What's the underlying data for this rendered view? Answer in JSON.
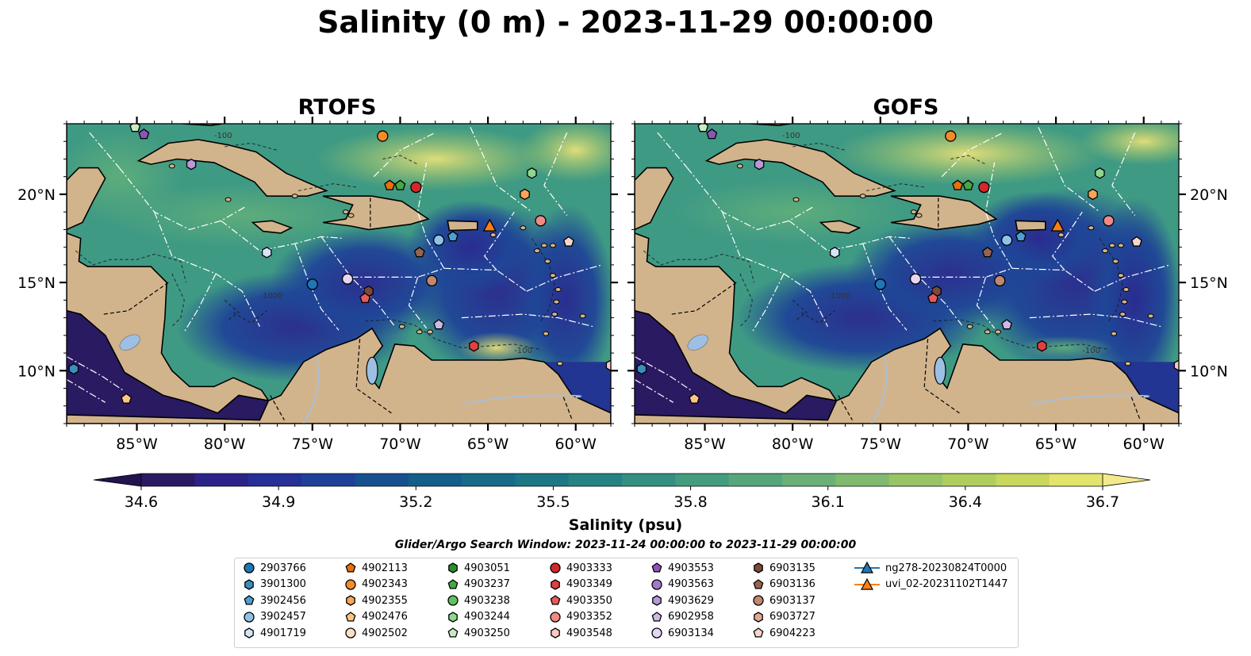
{
  "figure": {
    "title": "Salinity (0 m) - 2023-11-29 00:00:00",
    "panels": [
      {
        "title": "RTOFS"
      },
      {
        "title": "GOFS"
      }
    ],
    "colorbar": {
      "label": "Salinity (psu)",
      "ticks": [
        "34.6",
        "34.9",
        "35.2",
        "35.5",
        "35.8",
        "36.1",
        "36.4",
        "36.7"
      ],
      "colors": [
        "#2b1a62",
        "#2c2388",
        "#253196",
        "#1e4098",
        "#17508f",
        "#145e8a",
        "#176b87",
        "#1c7785",
        "#258384",
        "#348f83",
        "#449b80",
        "#56a67c",
        "#6ab077",
        "#81ba6f",
        "#98c466",
        "#b0cd5e",
        "#c9d75c",
        "#e2e46c"
      ]
    },
    "search_window": "Glider/Argo Search Window: 2023-11-24 00:00:00 to 2023-11-29 00:00:00",
    "lon_ticks": [
      "85°W",
      "80°W",
      "75°W",
      "70°W",
      "65°W",
      "60°W"
    ],
    "lat_ticks": [
      "20°N",
      "15°N",
      "10°N"
    ],
    "contour_labels": [
      "-100",
      "-1000",
      "-100"
    ]
  },
  "legend": [
    {
      "label": "2903766",
      "color": "#1f77b4",
      "marker": "circle"
    },
    {
      "label": "3901300",
      "color": "#3a8fbf",
      "marker": "hexagon"
    },
    {
      "label": "3902456",
      "color": "#4e9fd0",
      "marker": "pentagon"
    },
    {
      "label": "3902457",
      "color": "#8fc2e8",
      "marker": "circle"
    },
    {
      "label": "4901719",
      "color": "#d4e6f6",
      "marker": "hexagon"
    },
    {
      "label": "4902113",
      "color": "#e6700c",
      "marker": "pentagon"
    },
    {
      "label": "4902343",
      "color": "#f58b2a",
      "marker": "circle"
    },
    {
      "label": "4902355",
      "color": "#f9a45a",
      "marker": "hexagon"
    },
    {
      "label": "4902476",
      "color": "#fbc587",
      "marker": "pentagon"
    },
    {
      "label": "4902502",
      "color": "#fde0c2",
      "marker": "circle"
    },
    {
      "label": "4903051",
      "color": "#2e8b2e",
      "marker": "hexagon"
    },
    {
      "label": "4903237",
      "color": "#44a844",
      "marker": "pentagon"
    },
    {
      "label": "4903238",
      "color": "#5fc15f",
      "marker": "circle"
    },
    {
      "label": "4903244",
      "color": "#8fd68f",
      "marker": "hexagon"
    },
    {
      "label": "4903250",
      "color": "#c8ecc0",
      "marker": "pentagon"
    },
    {
      "label": "4903333",
      "color": "#d62728",
      "marker": "circle"
    },
    {
      "label": "4903349",
      "color": "#e04040",
      "marker": "hexagon"
    },
    {
      "label": "4903350",
      "color": "#e85a5a",
      "marker": "pentagon"
    },
    {
      "label": "4903352",
      "color": "#f08a84",
      "marker": "circle"
    },
    {
      "label": "4903548",
      "color": "#f9c9c4",
      "marker": "hexagon"
    },
    {
      "label": "4903553",
      "color": "#8b55b8",
      "marker": "pentagon"
    },
    {
      "label": "4903563",
      "color": "#a27ac9",
      "marker": "circle"
    },
    {
      "label": "4903629",
      "color": "#b798d8",
      "marker": "hexagon"
    },
    {
      "label": "6902958",
      "color": "#cdb8e6",
      "marker": "pentagon"
    },
    {
      "label": "6903134",
      "color": "#e5d6f2",
      "marker": "circle"
    },
    {
      "label": "6903135",
      "color": "#7b4a3a",
      "marker": "hexagon"
    },
    {
      "label": "6903136",
      "color": "#98634f",
      "marker": "pentagon"
    },
    {
      "label": "6903137",
      "color": "#c08870",
      "marker": "circle"
    },
    {
      "label": "6903727",
      "color": "#e3a990",
      "marker": "hexagon"
    },
    {
      "label": "6904223",
      "color": "#f9d6c8",
      "marker": "pentagon"
    },
    {
      "label": "ng278-20230824T0000",
      "color": "#1f77b4",
      "marker": "triangle-line"
    },
    {
      "label": "uvi_02-20231102T1447",
      "color": "#ff7f0e",
      "marker": "triangle-line"
    }
  ],
  "chart_data": {
    "type": "heatmap",
    "title": "Salinity (0 m) - 2023-11-29 00:00:00",
    "variable": "Salinity (psu)",
    "colorbar_range": [
      34.6,
      36.7
    ],
    "colorbar_ticks": [
      34.6,
      34.9,
      35.2,
      35.5,
      35.8,
      36.1,
      36.4,
      36.7
    ],
    "lon_range": [
      -89,
      -58
    ],
    "lat_range": [
      7,
      24
    ],
    "panels": [
      "RTOFS",
      "GOFS"
    ],
    "floats": [
      {
        "id": "4903553",
        "lon": -84.6,
        "lat": 23.4
      },
      {
        "id": "4903629",
        "lon": -81.9,
        "lat": 21.7
      },
      {
        "id": "4902343",
        "lon": -71.0,
        "lat": 23.3
      },
      {
        "id": "4902113",
        "lon": -70.6,
        "lat": 20.5
      },
      {
        "id": "4903237",
        "lon": -70.0,
        "lat": 20.5
      },
      {
        "id": "4903333",
        "lon": -69.1,
        "lat": 20.4
      },
      {
        "id": "4903244",
        "lon": -62.5,
        "lat": 21.2
      },
      {
        "id": "4902355",
        "lon": -62.9,
        "lat": 20.0
      },
      {
        "id": "4903352",
        "lon": -62.0,
        "lat": 18.5
      },
      {
        "id": "6904223",
        "lon": -60.4,
        "lat": 17.3
      },
      {
        "id": "3902457",
        "lon": -67.8,
        "lat": 17.4
      },
      {
        "id": "3902456",
        "lon": -67.0,
        "lat": 17.6
      },
      {
        "id": "4901719",
        "lon": -77.6,
        "lat": 16.7
      },
      {
        "id": "6903136",
        "lon": -68.9,
        "lat": 16.7
      },
      {
        "id": "2903766",
        "lon": -75.0,
        "lat": 14.9
      },
      {
        "id": "6903134",
        "lon": -73.0,
        "lat": 15.2
      },
      {
        "id": "6903137",
        "lon": -68.2,
        "lat": 15.1
      },
      {
        "id": "6903135",
        "lon": -71.8,
        "lat": 14.5
      },
      {
        "id": "4903350",
        "lon": -72.0,
        "lat": 14.1
      },
      {
        "id": "6902958",
        "lon": -67.8,
        "lat": 12.6
      },
      {
        "id": "4903349",
        "lon": -65.8,
        "lat": 11.4
      },
      {
        "id": "3901300",
        "lon": -88.6,
        "lat": 10.1
      },
      {
        "id": "4902476",
        "lon": -85.6,
        "lat": 8.4
      },
      {
        "id": "4903250",
        "lon": -85.1,
        "lat": 23.8
      },
      {
        "id": "4903548",
        "lon": -58.0,
        "lat": 10.3
      }
    ],
    "gliders": [
      {
        "id": "uvi_02-20231102T1447",
        "lon": -64.9,
        "lat": 18.2
      }
    ]
  }
}
